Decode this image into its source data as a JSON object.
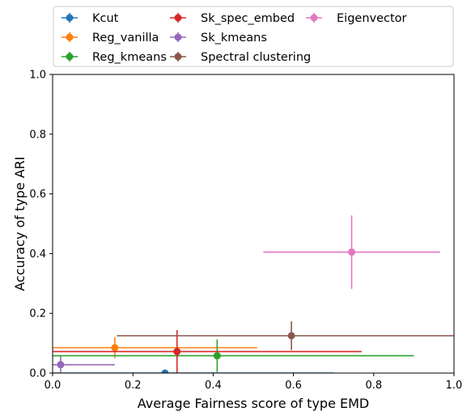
{
  "chart_data": {
    "type": "scatter",
    "title": "",
    "xlabel": "Average Fairness score of type EMD",
    "ylabel": "Accuracy of type ARI",
    "xlim": [
      0,
      1
    ],
    "ylim": [
      0,
      1
    ],
    "xticks": [
      "0.0",
      "0.2",
      "0.4",
      "0.6",
      "0.8",
      "1.0"
    ],
    "yticks": [
      "0.0",
      "0.2",
      "0.4",
      "0.6",
      "0.8",
      "1.0"
    ],
    "grid": false,
    "legend_position": "top, above plot, 3 columns",
    "series": [
      {
        "name": "Kcut",
        "color": "#1f77b4",
        "x": 0.28,
        "y": 0.0,
        "xerr": 0.42,
        "yerr": 0.0
      },
      {
        "name": "Reg_vanilla",
        "color": "#ff7f0e",
        "x": 0.155,
        "y": 0.085,
        "xerr": 0.355,
        "yerr": 0.035
      },
      {
        "name": "Reg_kmeans",
        "color": "#2ca02c",
        "x": 0.41,
        "y": 0.058,
        "xerr": 0.49,
        "yerr": 0.055
      },
      {
        "name": "Sk_spec_embed",
        "color": "#d62728",
        "x": 0.31,
        "y": 0.072,
        "xerr": 0.46,
        "yerr": 0.072
      },
      {
        "name": "Sk_kmeans",
        "color": "#9467bd",
        "x": 0.02,
        "y": 0.028,
        "xerr": 0.135,
        "yerr": 0.028
      },
      {
        "name": "Spectral clustering",
        "color": "#8c564b",
        "x": 0.595,
        "y": 0.125,
        "xerr": 0.435,
        "yerr": 0.048
      },
      {
        "name": "Eigenvector",
        "color": "#e377c2",
        "x": 0.745,
        "y": 0.405,
        "xerr": 0.22,
        "yerr": 0.123
      }
    ]
  }
}
